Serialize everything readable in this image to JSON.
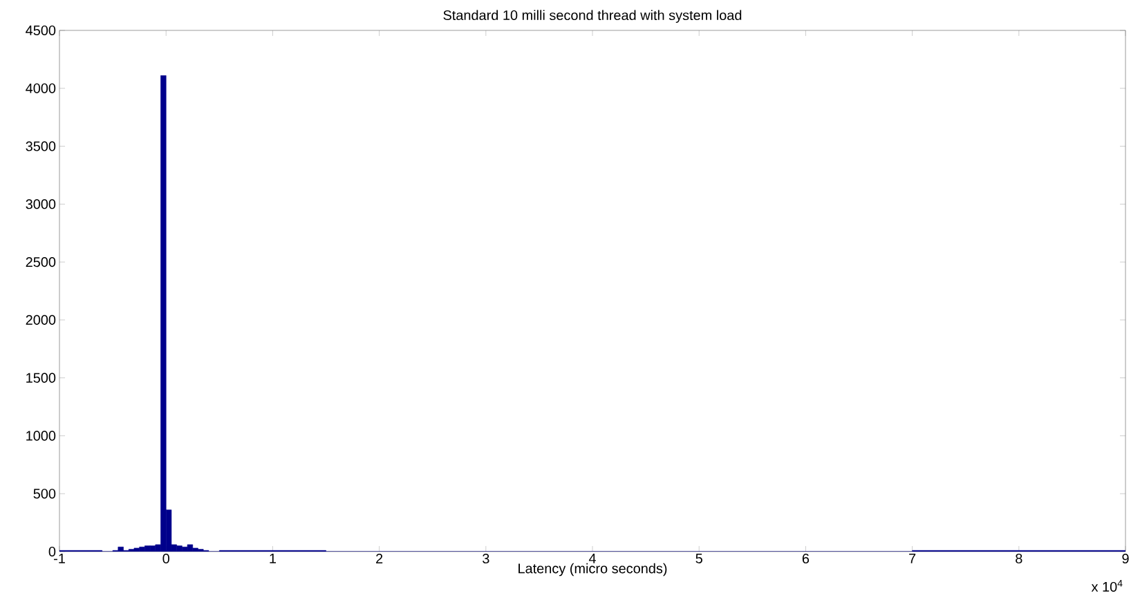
{
  "chart_data": {
    "type": "histogram",
    "title": "Standard 10 milli second thread with system load",
    "xlabel": "Latency (micro seconds)",
    "annotations": [
      "x 10$^{4}$"
    ],
    "bins": [
      -1,
      -0.6,
      -0.5,
      -0.45,
      -0.4,
      -0.35,
      -0.3,
      -0.25,
      -0.2,
      -0.15,
      -0.1,
      -0.05,
      0,
      0.05,
      0.1,
      0.15,
      0.2,
      0.25,
      0.3,
      0.35,
      0.4,
      0.5,
      1.5,
      7,
      9
    ],
    "values": [
      10,
      0,
      10,
      40,
      10,
      20,
      30,
      40,
      50,
      50,
      60,
      4110,
      360,
      60,
      50,
      40,
      60,
      30,
      20,
      10,
      0,
      10,
      0,
      10
    ],
    "color": "#00008b",
    "xlim": [
      -1,
      9
    ],
    "ylim": [
      0,
      4500
    ],
    "xticks": [
      -1,
      0,
      1,
      2,
      3,
      4,
      5,
      6,
      7,
      8,
      9
    ],
    "yticks": [
      0,
      500,
      1000,
      1500,
      2000,
      2500,
      3000,
      3500,
      4000,
      4500
    ],
    "grid": false
  }
}
